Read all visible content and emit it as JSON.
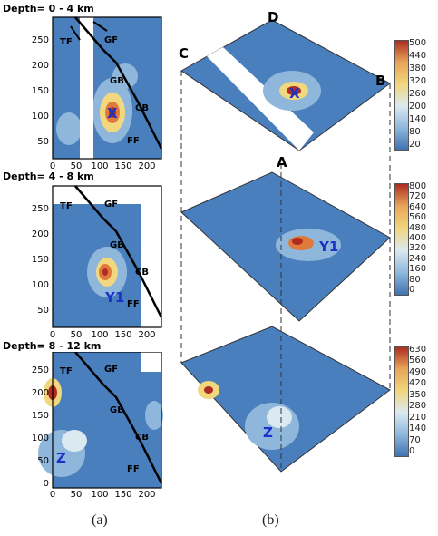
{
  "panels": [
    {
      "title": "Depth= 0 - 4 km"
    },
    {
      "title": "Depth= 4 - 8 km"
    },
    {
      "title": "Depth= 8 - 12 km"
    }
  ],
  "faults": [
    "TF",
    "GF",
    "GB",
    "CB",
    "FF"
  ],
  "anomalies": {
    "p1": "X",
    "p2": "Y1",
    "p3": "Z"
  },
  "corners": [
    "D",
    "C",
    "B",
    "A"
  ],
  "captions": [
    "(a)",
    "(b)"
  ],
  "chart_data": {
    "type": "heatmap",
    "xlim": [
      0,
      230
    ],
    "ylim": [
      0,
      280
    ],
    "xticks": [
      0,
      50,
      100,
      150,
      200
    ],
    "yticks": [
      0,
      50,
      100,
      150,
      200,
      250
    ],
    "colorbars": [
      {
        "ticks": [
          "500",
          "440",
          "380",
          "320",
          "260",
          "200",
          "140",
          "80",
          "20"
        ]
      },
      {
        "ticks": [
          "800",
          "720",
          "640",
          "560",
          "480",
          "400",
          "320",
          "240",
          "160",
          "80",
          "0"
        ]
      },
      {
        "ticks": [
          "630",
          "560",
          "490",
          "420",
          "350",
          "280",
          "210",
          "140",
          "70",
          "0"
        ]
      }
    ],
    "colors": {
      "low": "#3f73b3",
      "mid": "#dbe9f1",
      "high": "#ad2d22"
    }
  }
}
